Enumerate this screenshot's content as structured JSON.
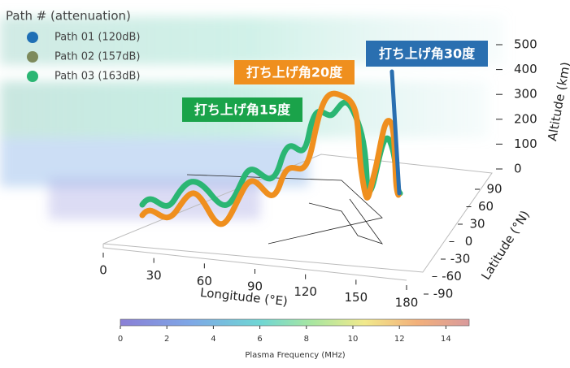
{
  "chart_data": {
    "type": "3d-path",
    "legend_title": "Path # (attenuation)",
    "series": [
      {
        "name": "Path 01 (120dB)",
        "color": "#1f6fb5"
      },
      {
        "name": "Path 02 (157dB)",
        "color": "#7d8a5c"
      },
      {
        "name": "Path 03 (163dB)",
        "color": "#2bb673"
      }
    ],
    "annotations": [
      {
        "text": "打ち上げ角30度",
        "color": "#2a6fb0"
      },
      {
        "text": "打ち上げ角20度",
        "color": "#ef8f1e"
      },
      {
        "text": "打ち上げ角15度",
        "color": "#1aa34a"
      }
    ],
    "xlabel": "Longitude (°E)",
    "xlim": [
      0,
      180
    ],
    "xticks": [
      0,
      30,
      60,
      90,
      120,
      150,
      180
    ],
    "ylabel": "Latitude (°N)",
    "ylim": [
      -90,
      90
    ],
    "yticks": [
      90,
      60,
      30,
      0,
      -30,
      -60,
      -90
    ],
    "zlabel": "Altitude (km)",
    "zlim": [
      0,
      500
    ],
    "zticks": [
      0,
      100,
      200,
      300,
      400,
      500
    ],
    "colorbar": {
      "label": "Plasma Frequency (MHz)",
      "lim": [
        0,
        15
      ],
      "ticks": [
        0,
        2,
        4,
        6,
        8,
        10,
        12,
        14
      ]
    }
  }
}
